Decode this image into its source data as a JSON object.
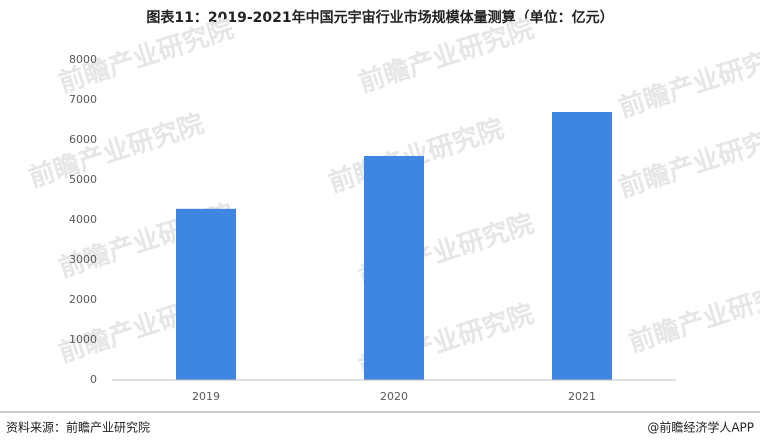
{
  "chart_data": {
    "type": "bar",
    "title": "图表11：2019-2021年中国元宇宙行业市场规模体量测算（单位：亿元）",
    "categories": [
      "2019",
      "2020",
      "2021"
    ],
    "values": [
      4280,
      5600,
      6700
    ],
    "color": "#3f86e3",
    "ylim": [
      0,
      8000
    ],
    "yticks": [
      0,
      1000,
      2000,
      3000,
      4000,
      5000,
      6000,
      7000,
      8000
    ],
    "grid": false,
    "source": "资料来源：前瞻产业研究院",
    "credit": "@前瞻经济学人APP",
    "watermark": "前瞻产业研究院"
  }
}
